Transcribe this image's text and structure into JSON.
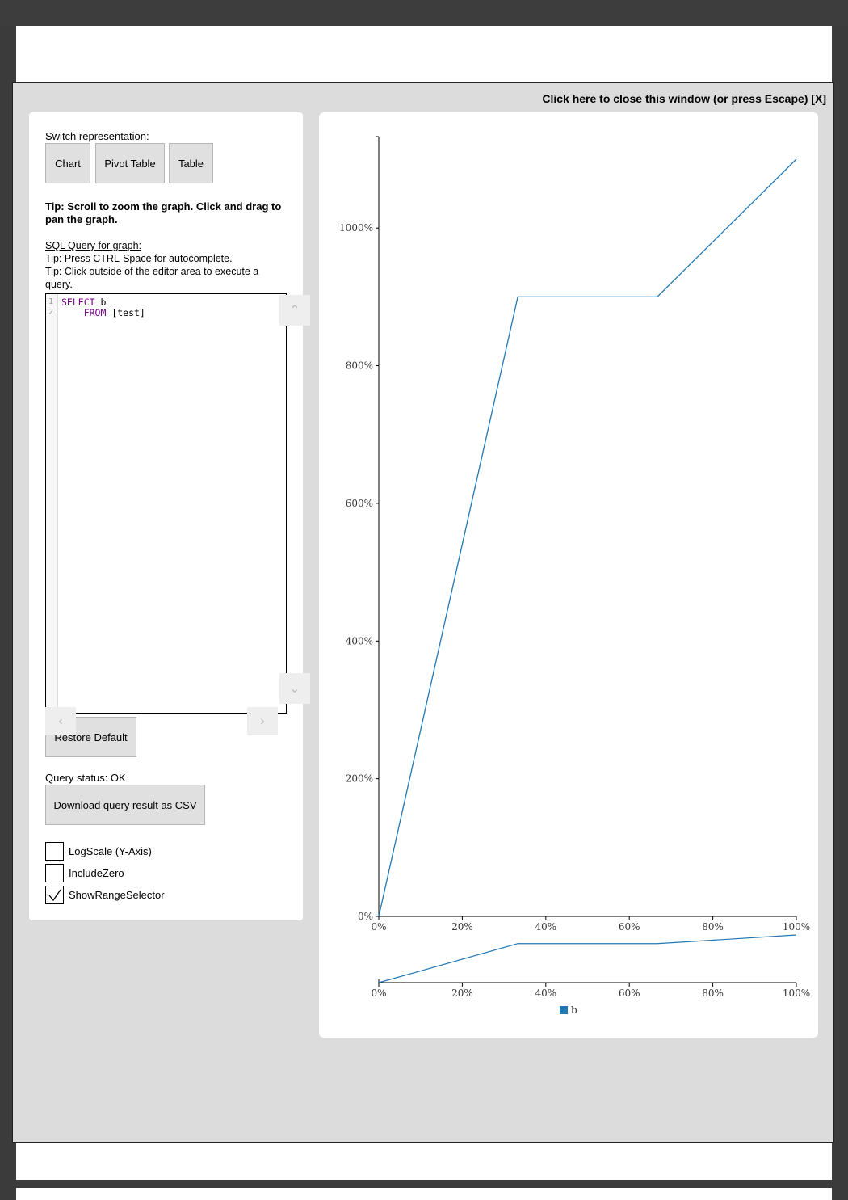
{
  "close_link": "Click here to close this window (or press Escape) [X]",
  "switch_label": "Switch representation:",
  "buttons": {
    "chart": "Chart",
    "pivot": "Pivot Table",
    "table": "Table"
  },
  "tip_zoom": "Tip: Scroll to zoom the graph. Click and drag to pan the graph.",
  "sql_heading": "SQL Query for graph:",
  "tip_autocomplete": "Tip: Press CTRL-Space for autocomplete.",
  "tip_execute": "Tip: Click outside of the editor area to execute a query.",
  "editor": {
    "lines": [
      {
        "num": "1",
        "kw": "SELECT",
        "rest": " b"
      },
      {
        "num": "2",
        "kw": "    FROM",
        "rest": " [test]"
      }
    ]
  },
  "restore_default": "Restore Default",
  "query_status": "Query status: OK",
  "download_csv": "Download query result as CSV",
  "checkboxes": [
    {
      "label": "LogScale (Y-Axis)",
      "checked": false
    },
    {
      "label": "IncludeZero",
      "checked": false
    },
    {
      "label": "ShowRangeSelector",
      "checked": true
    }
  ],
  "chart_data": {
    "type": "line",
    "series": [
      {
        "name": "b",
        "color": "#1f77b4",
        "x": [
          0,
          33.3,
          66.7,
          100
        ],
        "y": [
          0,
          900,
          900,
          1100
        ]
      }
    ],
    "xlim": [
      0,
      100
    ],
    "ylim": [
      0,
      1100
    ],
    "x_ticks": [
      "0%",
      "20%",
      "40%",
      "60%",
      "80%",
      "100%"
    ],
    "y_ticks": [
      "0%",
      "200%",
      "400%",
      "600%",
      "800%",
      "1000%"
    ],
    "legend": "bottom-center",
    "range_selector": true
  }
}
